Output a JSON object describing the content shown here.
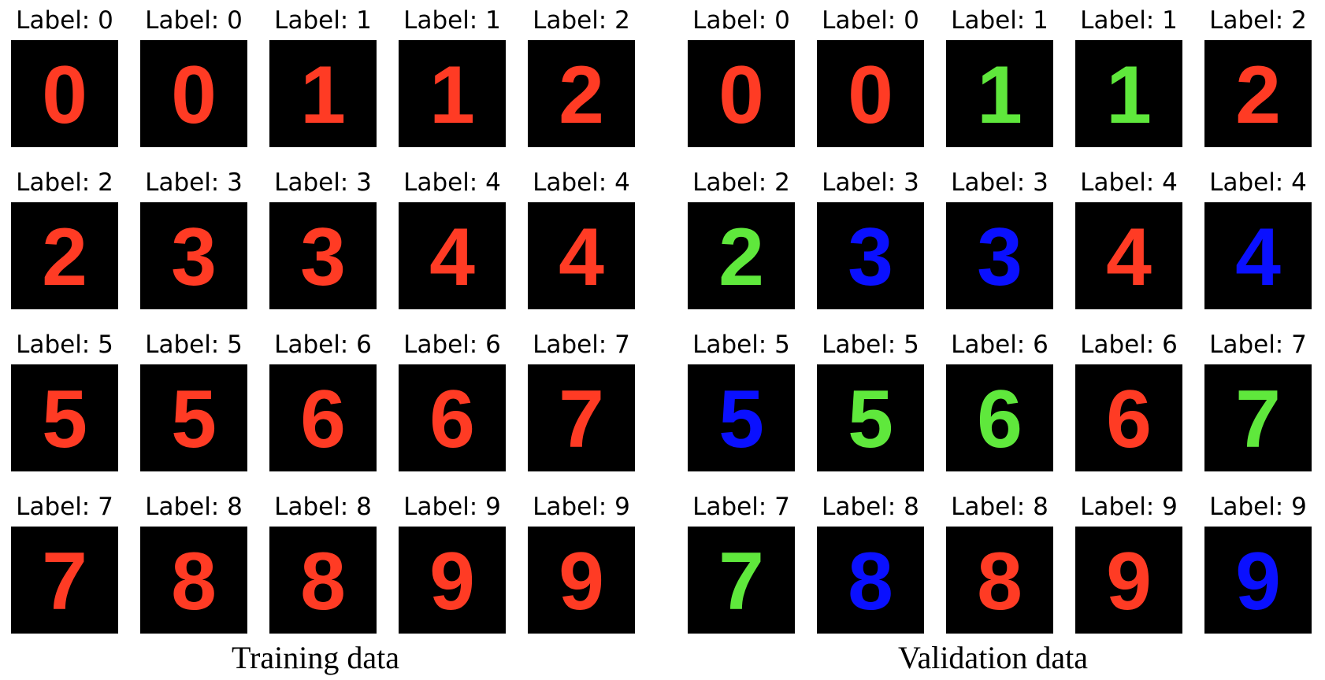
{
  "colors": {
    "red": "#ff3b24",
    "green": "#5fe83c",
    "blue": "#0a10ff",
    "tile_background": "#000000"
  },
  "panels": [
    {
      "caption": "Training data",
      "items": [
        {
          "label": "Label: 0",
          "digit": "0",
          "color": "red"
        },
        {
          "label": "Label: 0",
          "digit": "0",
          "color": "red"
        },
        {
          "label": "Label: 1",
          "digit": "1",
          "color": "red"
        },
        {
          "label": "Label: 1",
          "digit": "1",
          "color": "red"
        },
        {
          "label": "Label: 2",
          "digit": "2",
          "color": "red"
        },
        {
          "label": "Label: 2",
          "digit": "2",
          "color": "red"
        },
        {
          "label": "Label: 3",
          "digit": "3",
          "color": "red"
        },
        {
          "label": "Label: 3",
          "digit": "3",
          "color": "red"
        },
        {
          "label": "Label: 4",
          "digit": "4",
          "color": "red"
        },
        {
          "label": "Label: 4",
          "digit": "4",
          "color": "red"
        },
        {
          "label": "Label: 5",
          "digit": "5",
          "color": "red"
        },
        {
          "label": "Label: 5",
          "digit": "5",
          "color": "red"
        },
        {
          "label": "Label: 6",
          "digit": "6",
          "color": "red"
        },
        {
          "label": "Label: 6",
          "digit": "6",
          "color": "red"
        },
        {
          "label": "Label: 7",
          "digit": "7",
          "color": "red"
        },
        {
          "label": "Label: 7",
          "digit": "7",
          "color": "red"
        },
        {
          "label": "Label: 8",
          "digit": "8",
          "color": "red"
        },
        {
          "label": "Label: 8",
          "digit": "8",
          "color": "red"
        },
        {
          "label": "Label: 9",
          "digit": "9",
          "color": "red"
        },
        {
          "label": "Label: 9",
          "digit": "9",
          "color": "red"
        }
      ]
    },
    {
      "caption": "Validation data",
      "items": [
        {
          "label": "Label: 0",
          "digit": "0",
          "color": "red"
        },
        {
          "label": "Label: 0",
          "digit": "0",
          "color": "red"
        },
        {
          "label": "Label: 1",
          "digit": "1",
          "color": "green"
        },
        {
          "label": "Label: 1",
          "digit": "1",
          "color": "green"
        },
        {
          "label": "Label: 2",
          "digit": "2",
          "color": "red"
        },
        {
          "label": "Label: 2",
          "digit": "2",
          "color": "green"
        },
        {
          "label": "Label: 3",
          "digit": "3",
          "color": "blue"
        },
        {
          "label": "Label: 3",
          "digit": "3",
          "color": "blue"
        },
        {
          "label": "Label: 4",
          "digit": "4",
          "color": "red"
        },
        {
          "label": "Label: 4",
          "digit": "4",
          "color": "blue"
        },
        {
          "label": "Label: 5",
          "digit": "5",
          "color": "blue"
        },
        {
          "label": "Label: 5",
          "digit": "5",
          "color": "green"
        },
        {
          "label": "Label: 6",
          "digit": "6",
          "color": "green"
        },
        {
          "label": "Label: 6",
          "digit": "6",
          "color": "red"
        },
        {
          "label": "Label: 7",
          "digit": "7",
          "color": "green"
        },
        {
          "label": "Label: 7",
          "digit": "7",
          "color": "green"
        },
        {
          "label": "Label: 8",
          "digit": "8",
          "color": "blue"
        },
        {
          "label": "Label: 8",
          "digit": "8",
          "color": "red"
        },
        {
          "label": "Label: 9",
          "digit": "9",
          "color": "red"
        },
        {
          "label": "Label: 9",
          "digit": "9",
          "color": "blue"
        }
      ]
    }
  ]
}
